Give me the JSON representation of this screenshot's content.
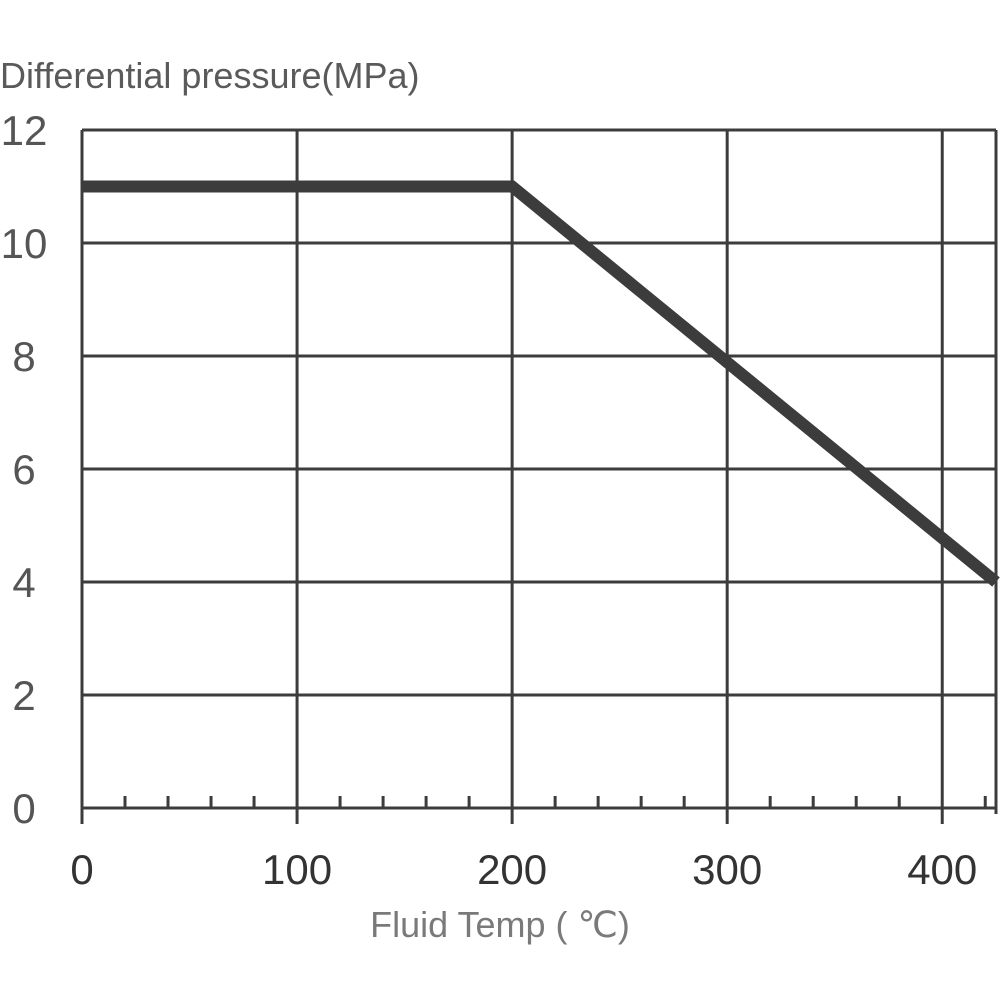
{
  "chart_data": {
    "type": "line",
    "title": "",
    "ylabel": "Differential pressure(MPa)",
    "xlabel": "Fluid Temp ( ℃)",
    "xlim": [
      0,
      425
    ],
    "ylim": [
      0,
      12
    ],
    "x_ticks": [
      0,
      100,
      200,
      300,
      400
    ],
    "y_ticks": [
      0,
      2,
      4,
      6,
      8,
      10,
      12
    ],
    "x_minor_step": 20,
    "grid": true,
    "series": [
      {
        "x": [
          0,
          200,
          425
        ],
        "y": [
          11,
          11,
          4
        ]
      }
    ],
    "colors": {
      "line": "#3d3c3c",
      "grid": "#3d3c3c"
    }
  }
}
